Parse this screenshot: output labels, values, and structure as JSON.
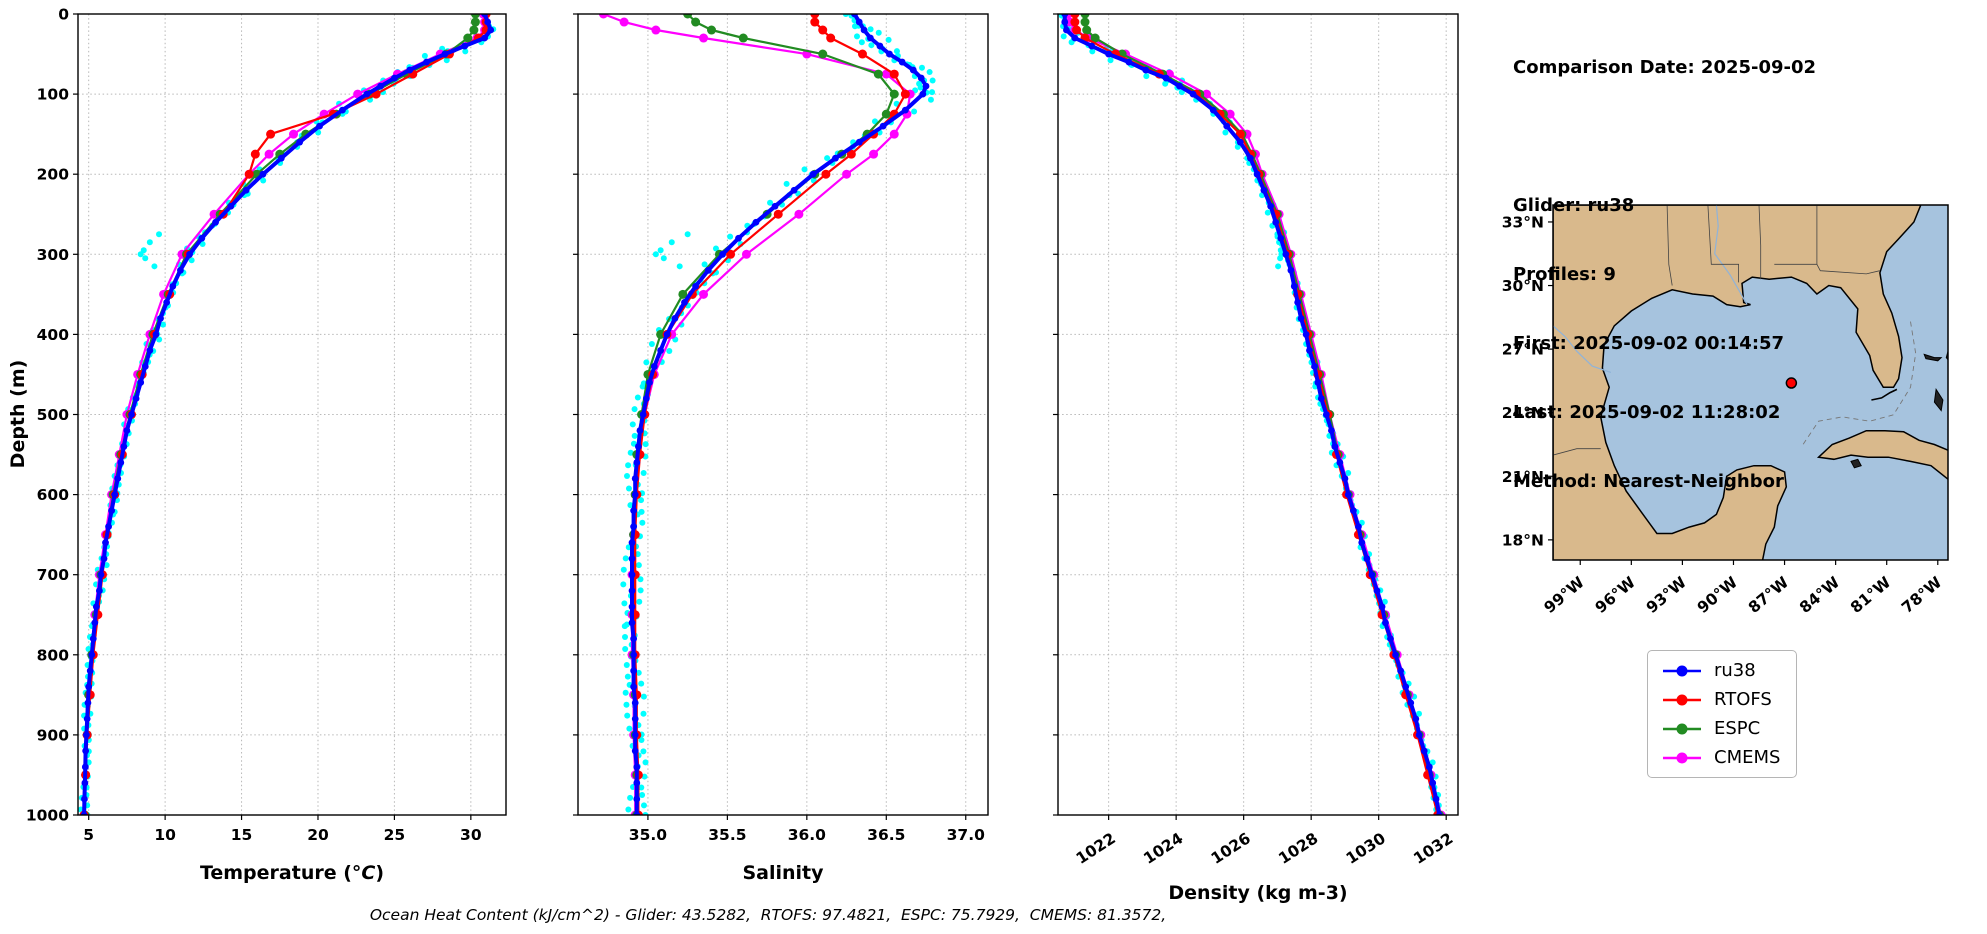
{
  "info_panel": {
    "comparison_date": "Comparison Date: 2025-09-02",
    "glider": "Glider: ru38",
    "profiles": "Profiles: 9",
    "first": "First: 2025-09-02 00:14:57",
    "last": "Last: 2025-09-02 11:28:02",
    "method": "Method: Nearest-Neighbor"
  },
  "footer": {
    "ohc_text": "Ocean Heat Content (kJ/cm^2) - Glider: 43.5282,  RTOFS: 97.4821,  ESPC: 75.7929,  CMEMS: 81.3572,"
  },
  "legend": {
    "items": [
      {
        "label": "ru38",
        "color": "#0000ff"
      },
      {
        "label": "RTOFS",
        "color": "#ff0000"
      },
      {
        "label": "ESPC",
        "color": "#228b22"
      },
      {
        "label": "CMEMS",
        "color": "#ff00ff"
      }
    ]
  },
  "map": {
    "extent": {
      "lon": [
        -100.6,
        -77.4
      ],
      "lat": [
        17.05,
        33.8
      ]
    },
    "lat_tick_values": [
      33,
      30,
      27,
      24,
      21,
      18
    ],
    "lat_tick_labels": [
      "33°N",
      "30°N",
      "27°N",
      "24°N",
      "21°N",
      "18°N"
    ],
    "lon_tick_values": [
      -99,
      -96,
      -93,
      -90,
      -87,
      -84,
      -81,
      -78
    ],
    "lon_tick_labels": [
      "99°W",
      "96°W",
      "93°W",
      "90°W",
      "87°W",
      "84°W",
      "81°W",
      "78°W"
    ],
    "marker": {
      "lon": -86.6,
      "lat": 25.4,
      "color": "#ff0000"
    },
    "land_color": "#d9b98c",
    "water_color": "#a6c3de"
  },
  "chart_data": {
    "type": "line",
    "orientation": "vertical-profile",
    "ylabel": "Depth (m)",
    "ylim": [
      0,
      1000
    ],
    "ytick_values": [
      0,
      100,
      200,
      300,
      400,
      500,
      600,
      700,
      800,
      900,
      1000
    ],
    "ytick_labels": [
      "0",
      "100",
      "200",
      "300",
      "400",
      "500",
      "600",
      "700",
      "800",
      "900",
      "1000"
    ],
    "grid": true,
    "plots": [
      {
        "key": "temperature",
        "xlabel_parts": [
          "Temperature (",
          "°C",
          ")"
        ],
        "xlim": [
          4.3,
          32.3
        ],
        "xticks": [
          5,
          10,
          15,
          20,
          25,
          30
        ],
        "xtick_labels": [
          "5",
          "10",
          "15",
          "20",
          "25",
          "30"
        ],
        "tick_rotation": 0
      },
      {
        "key": "salinity",
        "xlabel_parts": [
          "Salinity"
        ],
        "xlim": [
          34.56,
          37.14
        ],
        "xticks": [
          35.0,
          35.5,
          36.0,
          36.5,
          37.0
        ],
        "xtick_labels": [
          "35.0",
          "35.5",
          "36.0",
          "36.5",
          "37.0"
        ],
        "tick_rotation": 0
      },
      {
        "key": "density",
        "xlabel_parts": [
          "Density (kg m-3)"
        ],
        "xlim": [
          1020.5,
          1032.35
        ],
        "xticks": [
          1022,
          1024,
          1026,
          1028,
          1030,
          1032
        ],
        "xtick_labels": [
          "1022",
          "1024",
          "1026",
          "1028",
          "1030",
          "1032"
        ],
        "tick_rotation": -33
      }
    ],
    "series": [
      {
        "name": "ru38",
        "color": "#0000ff",
        "line_width": 4,
        "marker_size": 3.4,
        "depths": [
          0,
          10,
          20,
          30,
          40,
          50,
          60,
          70,
          80,
          90,
          100,
          120,
          140,
          160,
          180,
          200,
          220,
          240,
          260,
          280,
          300,
          320,
          340,
          360,
          380,
          400,
          420,
          440,
          460,
          480,
          500,
          520,
          540,
          560,
          580,
          600,
          620,
          640,
          660,
          680,
          700,
          720,
          740,
          760,
          780,
          800,
          820,
          840,
          860,
          880,
          900,
          920,
          940,
          960,
          980,
          1000
        ],
        "temperature": [
          30.9,
          31.1,
          31.3,
          30.9,
          29.6,
          28.3,
          27.1,
          26.0,
          25.0,
          24.1,
          23.2,
          21.6,
          20.1,
          18.8,
          17.6,
          16.4,
          15.3,
          14.3,
          13.3,
          12.4,
          11.6,
          11.0,
          10.5,
          10.1,
          9.7,
          9.4,
          9.0,
          8.7,
          8.4,
          8.1,
          7.8,
          7.5,
          7.3,
          7.1,
          6.9,
          6.7,
          6.5,
          6.3,
          6.1,
          6.0,
          5.8,
          5.7,
          5.5,
          5.4,
          5.3,
          5.2,
          5.1,
          5.0,
          4.95,
          4.9,
          4.85,
          4.8,
          4.78,
          4.75,
          4.72,
          4.7
        ],
        "salinity": [
          36.3,
          36.33,
          36.36,
          36.4,
          36.46,
          36.52,
          36.6,
          36.67,
          36.72,
          36.75,
          36.73,
          36.62,
          36.48,
          36.33,
          36.18,
          36.04,
          35.92,
          35.8,
          35.68,
          35.57,
          35.47,
          35.38,
          35.3,
          35.23,
          35.17,
          35.12,
          35.08,
          35.04,
          35.01,
          34.99,
          34.97,
          34.95,
          34.94,
          34.93,
          34.92,
          34.92,
          34.91,
          34.91,
          34.9,
          34.9,
          34.9,
          34.9,
          34.9,
          34.9,
          34.91,
          34.91,
          34.91,
          34.91,
          34.92,
          34.92,
          34.92,
          34.92,
          34.93,
          34.93,
          34.93,
          34.93
        ],
        "density": [
          1020.7,
          1020.7,
          1020.75,
          1021.0,
          1021.5,
          1022.0,
          1022.6,
          1023.1,
          1023.7,
          1024.1,
          1024.5,
          1025.1,
          1025.5,
          1025.9,
          1026.2,
          1026.4,
          1026.6,
          1026.8,
          1026.95,
          1027.1,
          1027.25,
          1027.4,
          1027.5,
          1027.6,
          1027.7,
          1027.85,
          1027.95,
          1028.1,
          1028.2,
          1028.3,
          1028.45,
          1028.6,
          1028.7,
          1028.85,
          1029.0,
          1029.1,
          1029.25,
          1029.4,
          1029.5,
          1029.65,
          1029.8,
          1029.95,
          1030.1,
          1030.2,
          1030.35,
          1030.5,
          1030.65,
          1030.8,
          1030.95,
          1031.1,
          1031.2,
          1031.35,
          1031.5,
          1031.6,
          1031.7,
          1031.8
        ]
      },
      {
        "name": "RTOFS",
        "color": "#ff0000",
        "line_width": 2.2,
        "marker_size": 4.5,
        "depths": [
          0,
          10,
          20,
          30,
          50,
          75,
          100,
          125,
          150,
          175,
          200,
          250,
          300,
          350,
          400,
          450,
          500,
          550,
          600,
          650,
          700,
          750,
          800,
          850,
          900,
          950,
          1000
        ],
        "temperature": [
          31.0,
          31.0,
          31.0,
          30.5,
          28.6,
          26.2,
          23.8,
          21.0,
          16.9,
          15.9,
          15.5,
          13.8,
          11.5,
          10.3,
          9.3,
          8.5,
          7.8,
          7.2,
          6.7,
          6.2,
          5.9,
          5.6,
          5.3,
          5.1,
          4.9,
          4.8,
          4.7
        ],
        "salinity": [
          36.05,
          36.05,
          36.1,
          36.15,
          36.35,
          36.55,
          36.62,
          36.55,
          36.42,
          36.28,
          36.12,
          35.82,
          35.52,
          35.28,
          35.12,
          35.03,
          34.98,
          34.95,
          34.93,
          34.92,
          34.92,
          34.92,
          34.92,
          34.93,
          34.93,
          34.94,
          34.94
        ],
        "density": [
          1021.0,
          1021.0,
          1021.05,
          1021.3,
          1022.2,
          1023.5,
          1024.6,
          1025.3,
          1025.9,
          1026.2,
          1026.45,
          1026.95,
          1027.3,
          1027.6,
          1027.9,
          1028.2,
          1028.5,
          1028.75,
          1029.05,
          1029.4,
          1029.75,
          1030.1,
          1030.45,
          1030.8,
          1031.15,
          1031.45,
          1031.75
        ]
      },
      {
        "name": "ESPC",
        "color": "#228b22",
        "line_width": 2.2,
        "marker_size": 4.5,
        "depths": [
          0,
          10,
          20,
          30,
          50,
          75,
          100,
          125,
          150,
          175,
          200,
          250,
          300,
          350,
          400,
          450,
          500,
          550,
          600,
          650,
          700,
          750,
          800,
          850,
          900,
          950,
          1000
        ],
        "temperature": [
          30.3,
          30.3,
          30.2,
          29.8,
          28.4,
          25.8,
          23.4,
          21.2,
          19.2,
          17.5,
          16.0,
          13.6,
          11.4,
          10.2,
          9.2,
          8.4,
          7.7,
          7.1,
          6.6,
          6.2,
          5.8,
          5.5,
          5.2,
          5.0,
          4.9,
          4.8,
          4.75
        ],
        "salinity": [
          35.25,
          35.3,
          35.4,
          35.6,
          36.1,
          36.45,
          36.55,
          36.5,
          36.38,
          36.22,
          36.05,
          35.75,
          35.45,
          35.22,
          35.08,
          35.0,
          34.96,
          34.93,
          34.92,
          34.91,
          34.91,
          34.91,
          34.91,
          34.92,
          34.92,
          34.93,
          34.93
        ],
        "density": [
          1021.3,
          1021.3,
          1021.35,
          1021.6,
          1022.4,
          1023.6,
          1024.7,
          1025.4,
          1025.95,
          1026.25,
          1026.5,
          1027.0,
          1027.35,
          1027.65,
          1027.95,
          1028.25,
          1028.55,
          1028.8,
          1029.1,
          1029.45,
          1029.8,
          1030.15,
          1030.5,
          1030.85,
          1031.2,
          1031.5,
          1031.8
        ]
      },
      {
        "name": "CMEMS",
        "color": "#ff00ff",
        "line_width": 2.2,
        "marker_size": 4.5,
        "depths": [
          0,
          10,
          20,
          30,
          50,
          75,
          100,
          125,
          150,
          175,
          200,
          250,
          300,
          350,
          400,
          450,
          500,
          550,
          600,
          650,
          700,
          750,
          800,
          850,
          900,
          950,
          1000
        ],
        "temperature": [
          30.8,
          30.9,
          30.9,
          30.4,
          28.0,
          25.2,
          22.6,
          20.4,
          18.4,
          16.8,
          15.5,
          13.2,
          11.1,
          9.9,
          9.0,
          8.2,
          7.5,
          7.0,
          6.5,
          6.1,
          5.7,
          5.4,
          5.2,
          5.0,
          4.9,
          4.8,
          4.7
        ],
        "salinity": [
          34.72,
          34.85,
          35.05,
          35.35,
          36.0,
          36.5,
          36.65,
          36.63,
          36.55,
          36.42,
          36.25,
          35.95,
          35.62,
          35.35,
          35.15,
          35.04,
          34.98,
          34.94,
          34.92,
          34.91,
          34.9,
          34.9,
          34.9,
          34.91,
          34.91,
          34.92,
          34.92
        ],
        "density": [
          1020.8,
          1020.85,
          1021.0,
          1021.4,
          1022.5,
          1023.8,
          1024.9,
          1025.6,
          1026.1,
          1026.35,
          1026.55,
          1027.05,
          1027.4,
          1027.7,
          1028.0,
          1028.3,
          1028.55,
          1028.85,
          1029.15,
          1029.5,
          1029.85,
          1030.2,
          1030.55,
          1030.9,
          1031.25,
          1031.55,
          1031.85
        ]
      }
    ],
    "raw_overlay": {
      "name": "glider-raw-scatter",
      "color": "#00ffff",
      "based_on": "ru38",
      "jitter": {
        "temperature": 0.22,
        "salinity": 0.055,
        "density": 0.1
      },
      "extra": {
        "depths": [
          275,
          285,
          295,
          300,
          305,
          315
        ],
        "temperature": [
          9.6,
          9.0,
          8.6,
          8.4,
          8.7,
          9.3
        ],
        "salinity": [
          35.25,
          35.15,
          35.08,
          35.05,
          35.1,
          35.2
        ],
        "density": [
          1027.0,
          1027.05,
          1027.1,
          1027.12,
          1027.08,
          1027.02
        ]
      }
    }
  }
}
